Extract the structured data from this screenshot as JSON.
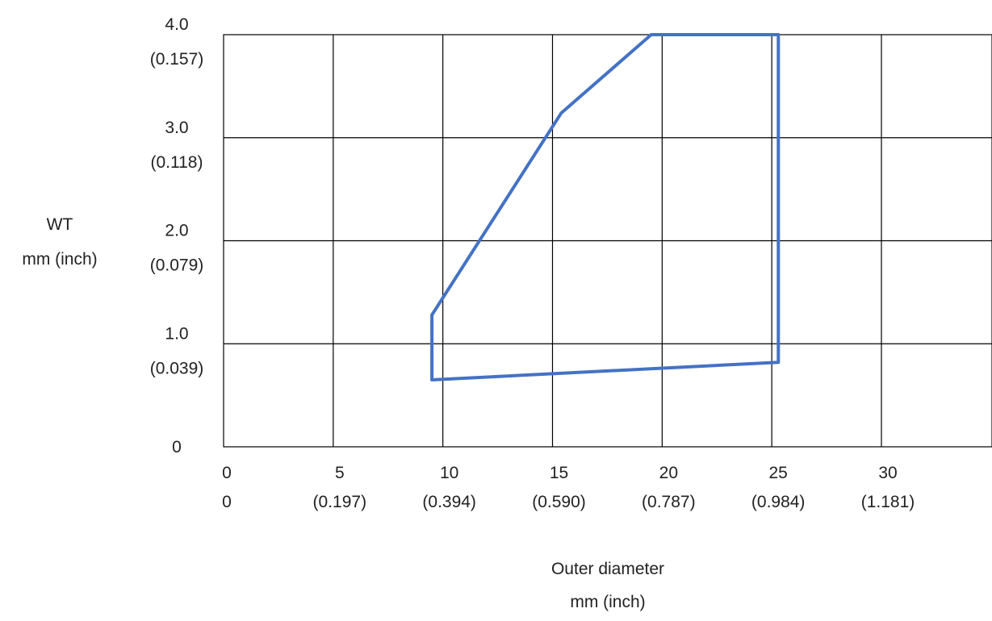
{
  "chart_data": {
    "type": "area",
    "title": "",
    "xlabel": [
      "Outer diameter",
      "mm (inch)"
    ],
    "ylabel": [
      "WT",
      "mm (inch)"
    ],
    "xlim": [
      0,
      35
    ],
    "ylim": [
      0,
      4
    ],
    "grid": true,
    "x_ticks": [
      {
        "value": 0,
        "labels": [
          "0",
          "0"
        ]
      },
      {
        "value": 5,
        "labels": [
          "5",
          "(0.197)"
        ]
      },
      {
        "value": 10,
        "labels": [
          "10",
          "(0.394)"
        ]
      },
      {
        "value": 15,
        "labels": [
          "15",
          "(0.590)"
        ]
      },
      {
        "value": 20,
        "labels": [
          "20",
          "(0.787)"
        ]
      },
      {
        "value": 25,
        "labels": [
          "25",
          "(0.984)"
        ]
      },
      {
        "value": 30,
        "labels": [
          "30",
          "(1.181)"
        ]
      }
    ],
    "y_ticks": [
      {
        "value": 0,
        "labels": [
          "0"
        ]
      },
      {
        "value": 1,
        "labels": [
          "1.0",
          "(0.039)"
        ]
      },
      {
        "value": 2,
        "labels": [
          "2.0",
          "(0.079)"
        ]
      },
      {
        "value": 3,
        "labels": [
          "3.0",
          "(0.118)"
        ]
      },
      {
        "value": 4,
        "labels": [
          "4.0",
          "(0.157)"
        ]
      }
    ],
    "series": [
      {
        "color": "#4472C4",
        "closed": true,
        "points": [
          {
            "x": 9.5,
            "y": 0.65
          },
          {
            "x": 25.3,
            "y": 0.82
          },
          {
            "x": 25.3,
            "y": 4.0
          },
          {
            "x": 19.5,
            "y": 4.0
          },
          {
            "x": 15.4,
            "y": 3.24
          },
          {
            "x": 9.5,
            "y": 1.28
          }
        ]
      }
    ]
  }
}
